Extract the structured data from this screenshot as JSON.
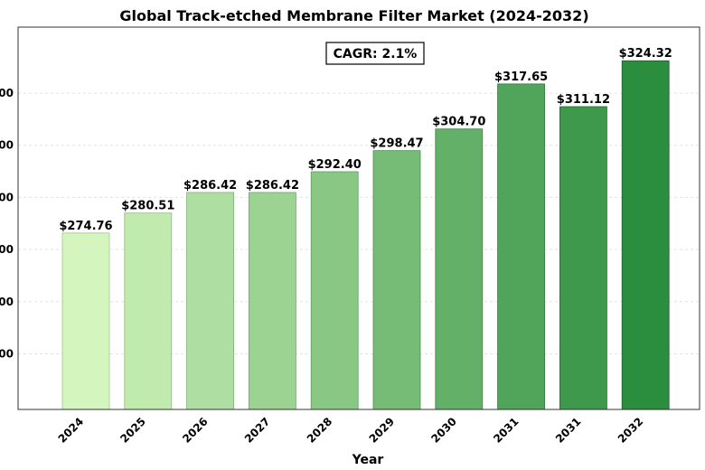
{
  "chart_data": {
    "type": "bar",
    "title": "Global Track-etched Membrane Filter Market (2024-2032)",
    "xlabel": "Year",
    "ylabel": "",
    "categories": [
      "2024",
      "2025",
      "2026",
      "2027",
      "2028",
      "2029",
      "2030",
      "2031",
      "2031",
      "2032"
    ],
    "values": [
      274.76,
      280.51,
      286.42,
      286.42,
      292.4,
      298.47,
      304.7,
      317.65,
      311.12,
      324.32
    ],
    "data_labels": [
      "$274.76",
      "$280.51",
      "$286.42",
      "$286.42",
      "$292.40",
      "$298.47",
      "$304.70",
      "$317.65",
      "$311.12",
      "$324.32"
    ],
    "y_ticks": [
      "00",
      "00",
      "00",
      "00",
      "00",
      "00"
    ],
    "ylim": [
      224,
      334
    ],
    "grid": true,
    "colors": {
      "bar_start": "#d4f5bd",
      "bar_end": "#2b8e3f",
      "grid": "#e3e3e3"
    },
    "annotation": "CAGR: 2.1%"
  }
}
